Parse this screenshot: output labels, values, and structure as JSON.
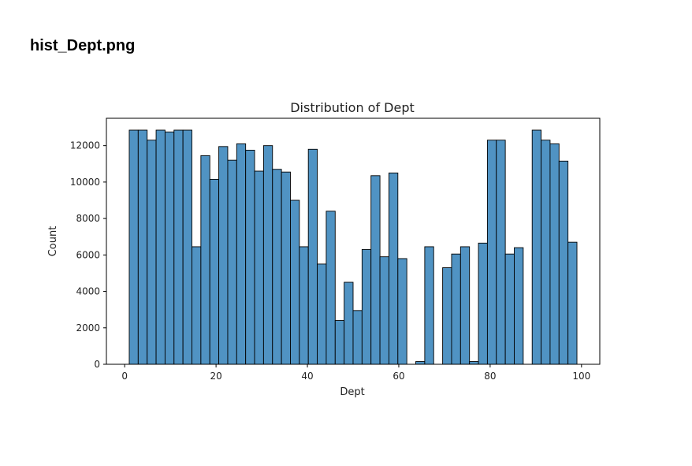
{
  "page": {
    "heading": "hist_Dept.png"
  },
  "chart_data": {
    "type": "bar",
    "title": "Distribution of Dept",
    "xlabel": "Dept",
    "ylabel": "Count",
    "xlim": [
      -4,
      104
    ],
    "ylim": [
      0,
      13500
    ],
    "xticks": [
      0,
      20,
      40,
      60,
      80,
      100
    ],
    "yticks": [
      0,
      2000,
      4000,
      6000,
      8000,
      10000,
      12000
    ],
    "bin_edges": [
      1,
      2.96,
      4.92,
      6.88,
      8.84,
      10.8,
      12.76,
      14.72,
      16.68,
      18.64,
      20.6,
      22.56,
      24.52,
      26.48,
      28.44,
      30.4,
      32.36,
      34.32,
      36.28,
      38.24,
      40.2,
      42.16,
      44.12,
      46.08,
      48.04,
      50,
      51.96,
      53.92,
      55.88,
      57.84,
      59.8,
      61.76,
      63.72,
      65.68,
      67.64,
      69.6,
      71.56,
      73.52,
      75.48,
      77.44,
      79.4,
      81.36,
      83.32,
      85.28,
      87.24,
      89.2,
      91.16,
      93.12,
      95.08,
      97.04,
      99
    ],
    "values": [
      12850,
      12850,
      12300,
      12850,
      12750,
      12850,
      12850,
      6450,
      11450,
      10150,
      11950,
      11200,
      12100,
      11750,
      10600,
      12000,
      10700,
      10550,
      9000,
      6450,
      11800,
      5500,
      8400,
      2400,
      4500,
      2950,
      6300,
      10350,
      5900,
      10500,
      5800,
      0,
      150,
      6450,
      0,
      5300,
      6050,
      6450,
      150,
      6650,
      12300,
      12300,
      6050,
      6400,
      0,
      12850,
      12300,
      12100,
      11150,
      6700
    ],
    "bar_color": "#5093c3",
    "edge_color": "#000000",
    "grid": false
  }
}
